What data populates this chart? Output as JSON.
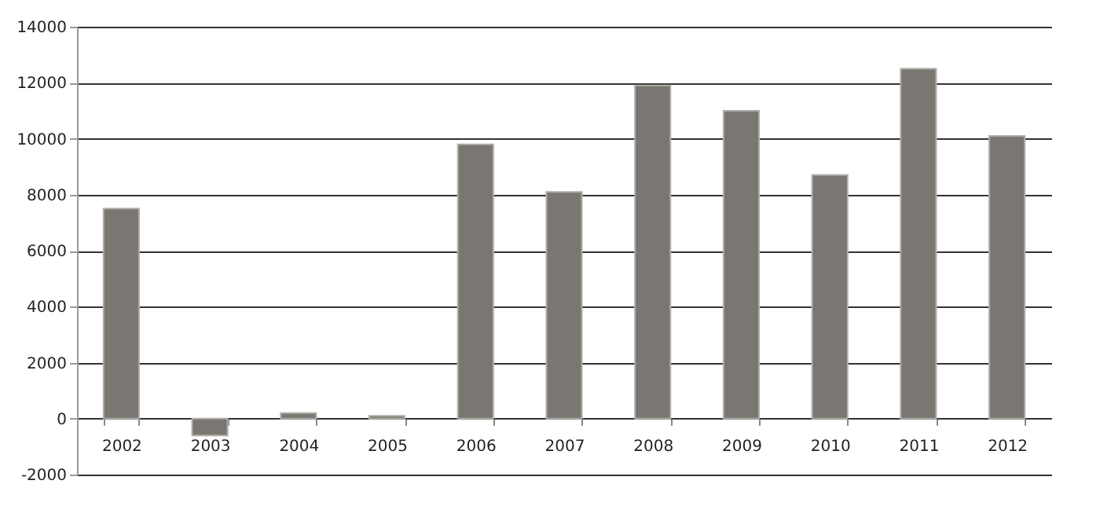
{
  "chart_data": {
    "type": "bar",
    "categories": [
      "2002",
      "2003",
      "2004",
      "2005",
      "2006",
      "2007",
      "2008",
      "2009",
      "2010",
      "2011",
      "2012"
    ],
    "values": [
      7500,
      -600,
      200,
      100,
      9800,
      8100,
      11900,
      11000,
      8700,
      12500,
      10100
    ],
    "color": "#7a7672",
    "ylim": [
      -2000,
      14000
    ],
    "yticks": [
      -2000,
      0,
      2000,
      4000,
      6000,
      8000,
      10000,
      12000,
      14000
    ],
    "grid": "y"
  }
}
